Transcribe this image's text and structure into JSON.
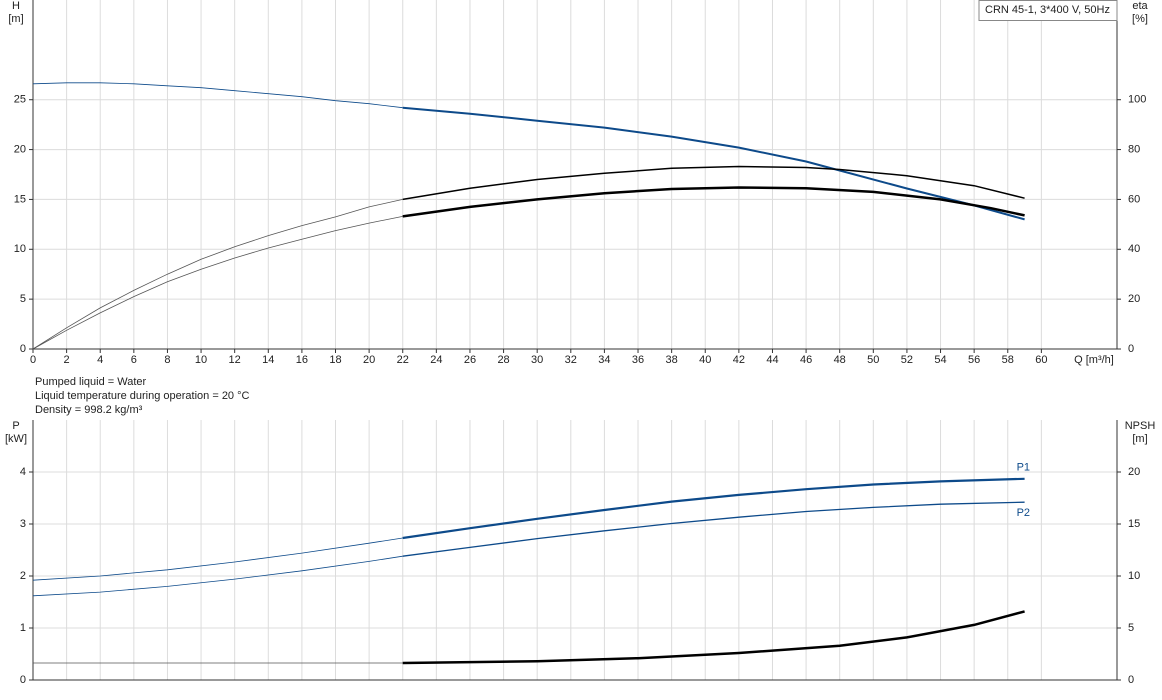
{
  "chart_data": [
    {
      "type": "line",
      "y_label": "H",
      "y_unit": "[m]",
      "y2_label": "eta",
      "y2_unit": "[%]",
      "x_label": "Q [m³/h]",
      "annotation": "CRN 45-1, 3*400 V, 50Hz",
      "grid": true,
      "xlim": [
        0,
        64.5
      ],
      "xticks": [
        0,
        2,
        4,
        6,
        8,
        10,
        12,
        14,
        16,
        18,
        20,
        22,
        24,
        26,
        28,
        30,
        32,
        34,
        36,
        38,
        40,
        42,
        44,
        46,
        48,
        50,
        52,
        54,
        56,
        58,
        60
      ],
      "ylim": [
        0,
        35
      ],
      "yticks": [
        0,
        5,
        10,
        15,
        20,
        25
      ],
      "y2lim": [
        0,
        140
      ],
      "y2ticks": [
        0,
        20,
        40,
        60,
        80,
        100
      ],
      "series": [
        {
          "color": "#0d4a8a",
          "width": 0.8,
          "x": [
            0,
            2,
            4,
            6,
            8,
            10,
            12,
            14,
            16,
            18,
            20,
            22
          ],
          "values": [
            26.6,
            26.7,
            26.7,
            26.6,
            26.4,
            26.2,
            25.9,
            25.6,
            25.3,
            24.9,
            24.6,
            24.2
          ]
        },
        {
          "color": "#0d4a8a",
          "width": 2,
          "x": [
            22,
            26,
            30,
            34,
            38,
            42,
            46,
            48,
            52,
            56,
            59
          ],
          "values": [
            24.2,
            23.6,
            22.9,
            22.2,
            21.3,
            20.2,
            18.8,
            17.9,
            16.1,
            14.4,
            13.0
          ]
        },
        {
          "color": "#555555",
          "width": 0.8,
          "axis": "y2",
          "x": [
            0,
            2,
            4,
            6,
            8,
            10,
            12,
            14,
            16,
            18,
            20,
            22
          ],
          "values": [
            0,
            8.5,
            16.5,
            23.5,
            30,
            36,
            41,
            45.5,
            49.5,
            53,
            57,
            60
          ]
        },
        {
          "color": "#000000",
          "width": 1.5,
          "axis": "y2",
          "x": [
            22,
            26,
            30,
            34,
            38,
            42,
            46,
            48,
            52,
            56,
            59
          ],
          "values": [
            60,
            64.5,
            68,
            70.5,
            72.5,
            73.2,
            72.8,
            72,
            69.5,
            65.5,
            60.5
          ]
        },
        {
          "color": "#555555",
          "width": 0.8,
          "axis": "y2",
          "x": [
            0,
            2,
            4,
            6,
            8,
            10,
            12,
            14,
            16,
            18,
            20,
            22
          ],
          "values": [
            0,
            7.5,
            14.5,
            21,
            27,
            32,
            36.5,
            40.5,
            44,
            47.5,
            50.5,
            53.2
          ]
        },
        {
          "color": "#000000",
          "width": 2.5,
          "axis": "y2",
          "x": [
            22,
            26,
            30,
            34,
            38,
            42,
            46,
            50,
            54,
            57,
            59
          ],
          "values": [
            53.2,
            57,
            60,
            62.5,
            64.2,
            64.8,
            64.5,
            63,
            60,
            56.5,
            53.6
          ]
        }
      ]
    },
    {
      "type": "line",
      "y_label": "P",
      "y_unit": "[kW]",
      "y2_label": "NPSH",
      "y2_unit": "[m]",
      "grid": true,
      "xlim": [
        0,
        64.5
      ],
      "ylim": [
        0,
        5
      ],
      "yticks": [
        0,
        1,
        2,
        3,
        4
      ],
      "y2lim": [
        0,
        25
      ],
      "y2ticks": [
        0,
        5,
        10,
        15,
        20
      ],
      "series": [
        {
          "color": "#0d4a8a",
          "width": 0.8,
          "x": [
            0,
            4,
            8,
            12,
            16,
            20,
            22
          ],
          "values": [
            1.92,
            2.0,
            2.12,
            2.27,
            2.44,
            2.63,
            2.73
          ]
        },
        {
          "name": "P1",
          "color": "#0d4a8a",
          "width": 2.2,
          "x": [
            22,
            26,
            30,
            34,
            38,
            42,
            46,
            50,
            54,
            59
          ],
          "values": [
            2.73,
            2.92,
            3.1,
            3.27,
            3.43,
            3.56,
            3.67,
            3.76,
            3.82,
            3.87
          ]
        },
        {
          "color": "#0d4a8a",
          "width": 0.8,
          "x": [
            0,
            4,
            8,
            12,
            16,
            20,
            22
          ],
          "values": [
            1.62,
            1.69,
            1.8,
            1.94,
            2.1,
            2.28,
            2.38
          ]
        },
        {
          "name": "P2",
          "color": "#0d4a8a",
          "width": 1.3,
          "x": [
            22,
            26,
            30,
            34,
            38,
            42,
            46,
            50,
            54,
            59
          ],
          "values": [
            2.38,
            2.55,
            2.72,
            2.87,
            3.01,
            3.13,
            3.24,
            3.32,
            3.38,
            3.42
          ]
        },
        {
          "color": "#555555",
          "width": 0.8,
          "axis": "y2",
          "x": [
            0,
            22
          ],
          "values": [
            1.63,
            1.63
          ]
        },
        {
          "color": "#000000",
          "width": 2.5,
          "axis": "y2",
          "x": [
            22,
            30,
            36,
            42,
            48,
            52,
            56,
            59
          ],
          "values": [
            1.63,
            1.8,
            2.1,
            2.6,
            3.3,
            4.1,
            5.3,
            6.6
          ]
        }
      ]
    }
  ],
  "notes": [
    "Pumped liquid = Water",
    "Liquid temperature during operation = 20 °C",
    "Density = 998.2 kg/m³"
  ]
}
